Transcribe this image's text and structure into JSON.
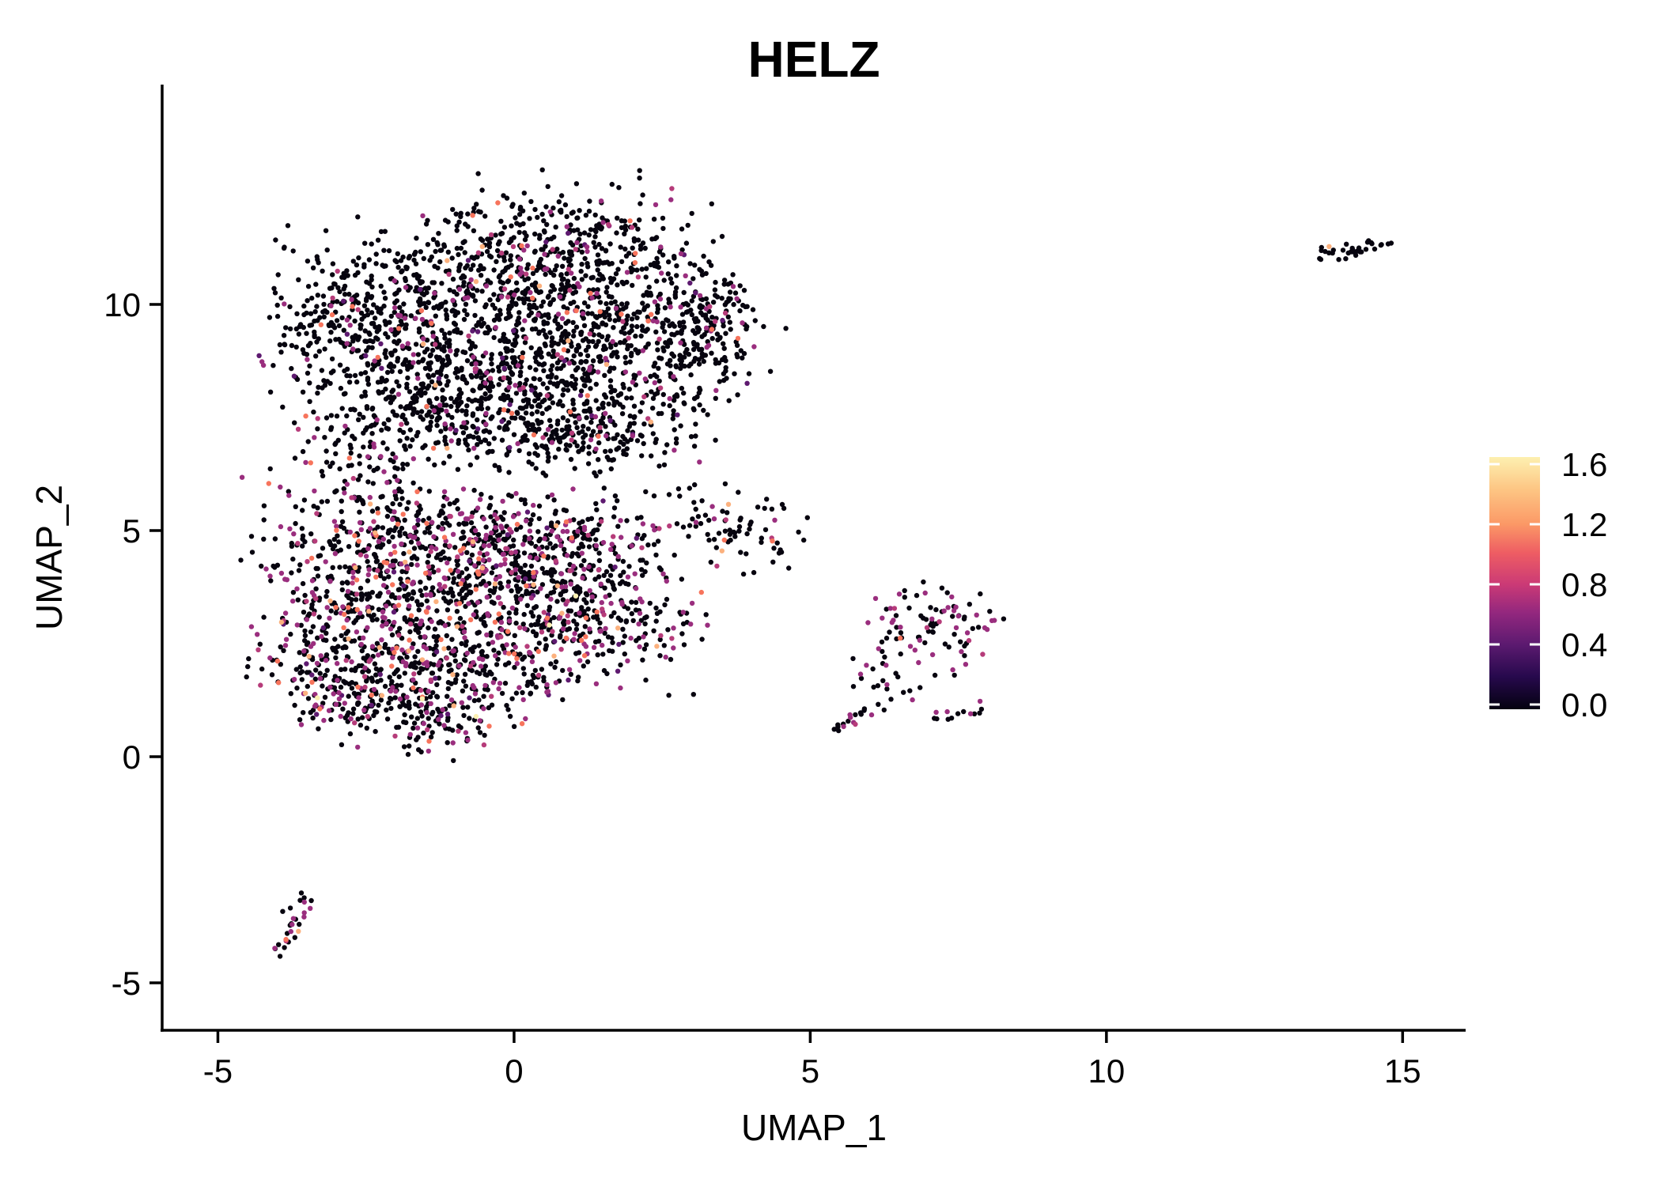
{
  "chart_data": {
    "type": "scatter",
    "title": "HELZ",
    "xlabel": "UMAP_1",
    "ylabel": "UMAP_2",
    "xlim": [
      -5.941,
      16.064
    ],
    "ylim": [
      -6.049,
      14.86
    ],
    "x_ticks": [
      -5,
      0,
      5,
      10,
      15
    ],
    "y_ticks": [
      -5,
      0,
      5,
      10
    ],
    "grid": false,
    "background": "#ffffff",
    "axis_color": "#000000",
    "point_radius": 3.2,
    "legend": {
      "type": "colorbar",
      "ticks": [
        "1.6",
        "1.2",
        "0.8",
        "0.4",
        "0.0"
      ],
      "tick_values": [
        1.6,
        1.2,
        0.8,
        0.4,
        0.0
      ],
      "vmin": 0.0,
      "vmax": 1.65,
      "gradient": [
        {
          "at": 0.0,
          "color": "#040210"
        },
        {
          "at": 0.13,
          "color": "#27094d"
        },
        {
          "at": 0.257,
          "color": "#5c1a70"
        },
        {
          "at": 0.38,
          "color": "#92277e"
        },
        {
          "at": 0.495,
          "color": "#cb3a76"
        },
        {
          "at": 0.62,
          "color": "#ee5d63"
        },
        {
          "at": 0.733,
          "color": "#fb9866"
        },
        {
          "at": 0.87,
          "color": "#fdc583"
        },
        {
          "at": 1.0,
          "color": "#fdf0b0"
        }
      ]
    },
    "palette": [
      {
        "name": "black",
        "hex": "#07040f"
      },
      {
        "name": "dark_purple",
        "hex": "#5e1a70"
      },
      {
        "name": "purple",
        "hex": "#9a2e7e"
      },
      {
        "name": "magenta",
        "hex": "#b63c7a"
      },
      {
        "name": "salmon",
        "hex": "#f7745c"
      },
      {
        "name": "pale_orange",
        "hex": "#fcb17e"
      },
      {
        "name": "cream",
        "hex": "#fbf0b2"
      }
    ],
    "clusters": [
      {
        "name": "upper-blob",
        "seed": 101,
        "mix": {
          "purple": 0.058,
          "dark_purple": 0.018,
          "magenta": 0.015,
          "salmon": 0.011,
          "pale_orange": 0.003
        },
        "blobs": [
          {
            "cx": 0.9,
            "cy": 11.25,
            "sx": 1.25,
            "sy": 0.75,
            "n": 250
          },
          {
            "cx": 1.6,
            "cy": 11.7,
            "sx": 0.55,
            "sy": 0.45,
            "n": 45
          },
          {
            "cx": -0.5,
            "cy": 10.3,
            "sx": 1.55,
            "sy": 0.85,
            "n": 360
          },
          {
            "cx": -2.2,
            "cy": 9.4,
            "sx": 0.95,
            "sy": 0.85,
            "n": 270
          },
          {
            "cx": 0.5,
            "cy": 9.35,
            "sx": 1.5,
            "sy": 0.9,
            "n": 370
          },
          {
            "cx": 2.3,
            "cy": 9.5,
            "sx": 1.0,
            "sy": 0.85,
            "n": 250
          },
          {
            "cx": 0.2,
            "cy": 8.25,
            "sx": 1.7,
            "sy": 0.7,
            "n": 320
          },
          {
            "cx": -1.3,
            "cy": 7.7,
            "sx": 1.1,
            "sy": 0.55,
            "n": 190
          },
          {
            "cx": 1.3,
            "cy": 7.35,
            "sx": 0.95,
            "sy": 0.55,
            "n": 170
          },
          {
            "cx": 3.35,
            "cy": 9.4,
            "sx": 0.42,
            "sy": 0.7,
            "n": 85
          },
          {
            "cx": -3.05,
            "cy": 9.7,
            "sx": 0.4,
            "sy": 0.75,
            "n": 65
          },
          {
            "cx": 0.3,
            "cy": 6.95,
            "sx": 1.25,
            "sy": 0.33,
            "n": 100
          }
        ]
      },
      {
        "name": "neck",
        "seed": 102,
        "mix": {
          "purple": 0.14,
          "magenta": 0.02,
          "salmon": 0.04
        },
        "blobs": [
          {
            "cx": -2.55,
            "cy": 6.55,
            "sx": 0.5,
            "sy": 0.6,
            "n": 80
          }
        ]
      },
      {
        "name": "lower-blob",
        "seed": 103,
        "mix": {
          "purple": 0.165,
          "magenta": 0.045,
          "dark_purple": 0.02,
          "salmon": 0.04,
          "pale_orange": 0.013,
          "cream": 0.002
        },
        "blobs": [
          {
            "cx": -2.7,
            "cy": 4.3,
            "sx": 0.85,
            "sy": 1.05,
            "n": 270
          },
          {
            "cx": -3.05,
            "cy": 2.1,
            "sx": 0.65,
            "sy": 0.85,
            "n": 190
          },
          {
            "cx": -1.5,
            "cy": 3.3,
            "sx": 1.15,
            "sy": 1.15,
            "n": 370
          },
          {
            "cx": 0.0,
            "cy": 3.65,
            "sx": 1.15,
            "sy": 0.95,
            "n": 320
          },
          {
            "cx": 1.35,
            "cy": 3.0,
            "sx": 0.85,
            "sy": 0.75,
            "n": 230
          },
          {
            "cx": -0.6,
            "cy": 4.95,
            "sx": 1.15,
            "sy": 0.55,
            "n": 210
          },
          {
            "cx": 0.8,
            "cy": 4.6,
            "sx": 0.85,
            "sy": 0.55,
            "n": 140
          },
          {
            "cx": -2.0,
            "cy": 1.35,
            "sx": 0.75,
            "sy": 0.5,
            "n": 115
          },
          {
            "cx": -0.7,
            "cy": 2.0,
            "sx": 0.95,
            "sy": 0.55,
            "n": 140
          },
          {
            "cx": -1.3,
            "cy": 0.85,
            "sx": 0.75,
            "sy": 0.42,
            "n": 85
          }
        ]
      },
      {
        "name": "bridge",
        "seed": 104,
        "mix": {
          "purple": 0.08
        },
        "blobs": [
          {
            "cx": 2.35,
            "cy": 5.0,
            "sx": 0.45,
            "sy": 0.45,
            "n": 22
          }
        ]
      },
      {
        "name": "mid-cluster",
        "seed": 105,
        "mix": {
          "purple": 0.05,
          "magenta": 0.05
        },
        "blobs": [
          {
            "cx": 3.45,
            "cy": 5.15,
            "sx": 0.4,
            "sy": 0.45,
            "n": 30
          },
          {
            "cx": 4.1,
            "cy": 4.85,
            "sx": 0.42,
            "sy": 0.42,
            "n": 36
          }
        ]
      },
      {
        "name": "right-cluster",
        "seed": 106,
        "mix": {
          "purple": 0.3,
          "magenta": 0.04
        },
        "blobs": [
          {
            "cx": 6.9,
            "cy": 2.75,
            "sx": 0.5,
            "sy": 0.45,
            "n": 55
          },
          {
            "cx": 7.55,
            "cy": 2.95,
            "sx": 0.35,
            "sy": 0.45,
            "n": 26
          },
          {
            "cx": 6.35,
            "cy": 1.75,
            "sx": 0.42,
            "sy": 0.4,
            "n": 22
          },
          {
            "x1": 5.35,
            "y1": 0.5,
            "x2": 6.3,
            "y2": 1.25,
            "jx": 0.12,
            "jy": 0.12,
            "n": 20
          },
          {
            "x1": 7.15,
            "y1": 0.85,
            "x2": 7.9,
            "y2": 1.1,
            "jx": 0.09,
            "jy": 0.09,
            "n": 13
          },
          {
            "cx": 6.8,
            "cy": 3.6,
            "sx": 0.3,
            "sy": 0.25,
            "n": 8
          }
        ]
      },
      {
        "name": "tiny-cluster",
        "seed": 107,
        "mix": {
          "purple": 0.44,
          "magenta": 0.06
        },
        "blobs": [
          {
            "x1": -3.58,
            "y1": -3.15,
            "x2": -4.0,
            "y2": -4.45,
            "jx": 0.13,
            "jy": 0.13,
            "n": 26
          }
        ]
      },
      {
        "name": "far-right-cluster",
        "seed": 108,
        "mix": {},
        "blobs": [
          {
            "x1": 13.72,
            "y1": 11.08,
            "x2": 14.78,
            "y2": 11.42,
            "jx": 0.12,
            "jy": 0.09,
            "n": 33
          }
        ]
      }
    ],
    "extra_points": [
      {
        "x": -3.07,
        "y": 9.77,
        "c": "salmon"
      },
      {
        "x": -3.26,
        "y": 9.55,
        "c": "salmon"
      },
      {
        "x": -2.3,
        "y": 8.83,
        "c": "salmon"
      },
      {
        "x": -0.17,
        "y": 7.67,
        "c": "salmon"
      },
      {
        "x": -1.36,
        "y": 6.82,
        "c": "salmon"
      },
      {
        "x": -1.13,
        "y": 6.82,
        "c": "pale_orange"
      },
      {
        "x": 3.78,
        "y": 9.25,
        "c": "salmon"
      },
      {
        "x": -3.32,
        "y": 1.3,
        "c": "cream"
      },
      {
        "x": -1.55,
        "y": 1.28,
        "c": "cream"
      },
      {
        "x": 3.62,
        "y": 5.58,
        "c": "pale_orange"
      },
      {
        "x": 3.51,
        "y": 4.55,
        "c": "pale_orange"
      },
      {
        "x": 3.55,
        "y": 4.79,
        "c": "salmon"
      },
      {
        "x": 4.36,
        "y": 4.77,
        "c": "salmon"
      },
      {
        "x": 4.4,
        "y": 5.23,
        "c": "purple"
      },
      {
        "x": 6.52,
        "y": 2.62,
        "c": "salmon"
      },
      {
        "x": -3.64,
        "y": -3.86,
        "c": "pale_orange"
      },
      {
        "x": -3.85,
        "y": -4.04,
        "c": "salmon"
      },
      {
        "x": 13.76,
        "y": 11.28,
        "c": "pale_orange"
      }
    ]
  }
}
